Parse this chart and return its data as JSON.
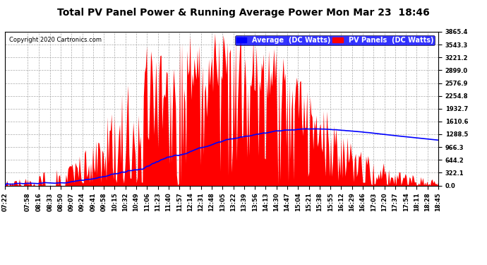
{
  "title": "Total PV Panel Power & Running Average Power Mon Mar 23  18:46",
  "copyright": "Copyright 2020 Cartronics.com",
  "legend_average": "Average  (DC Watts)",
  "legend_pv": "PV Panels  (DC Watts)",
  "ymax": 3865.4,
  "ymin": 0.0,
  "yticks": [
    0.0,
    322.1,
    644.2,
    966.3,
    1288.5,
    1610.6,
    1932.7,
    2254.8,
    2576.9,
    2899.0,
    3221.2,
    3543.3,
    3865.4
  ],
  "background_color": "#ffffff",
  "pv_color": "#ff0000",
  "avg_color": "#0000ff",
  "grid_color": "#aaaaaa",
  "x_labels": [
    "07:22",
    "07:58",
    "08:16",
    "08:33",
    "08:50",
    "09:07",
    "09:24",
    "09:41",
    "09:58",
    "10:15",
    "10:32",
    "10:49",
    "11:06",
    "11:23",
    "11:40",
    "11:57",
    "12:14",
    "12:31",
    "12:48",
    "13:05",
    "13:22",
    "13:39",
    "13:56",
    "14:13",
    "14:30",
    "14:47",
    "15:04",
    "15:21",
    "15:38",
    "15:55",
    "16:12",
    "16:29",
    "16:46",
    "17:03",
    "17:20",
    "17:37",
    "17:54",
    "18:11",
    "18:28",
    "18:45"
  ],
  "title_fontsize": 10,
  "copyright_fontsize": 6,
  "legend_fontsize": 7,
  "tick_fontsize": 6
}
